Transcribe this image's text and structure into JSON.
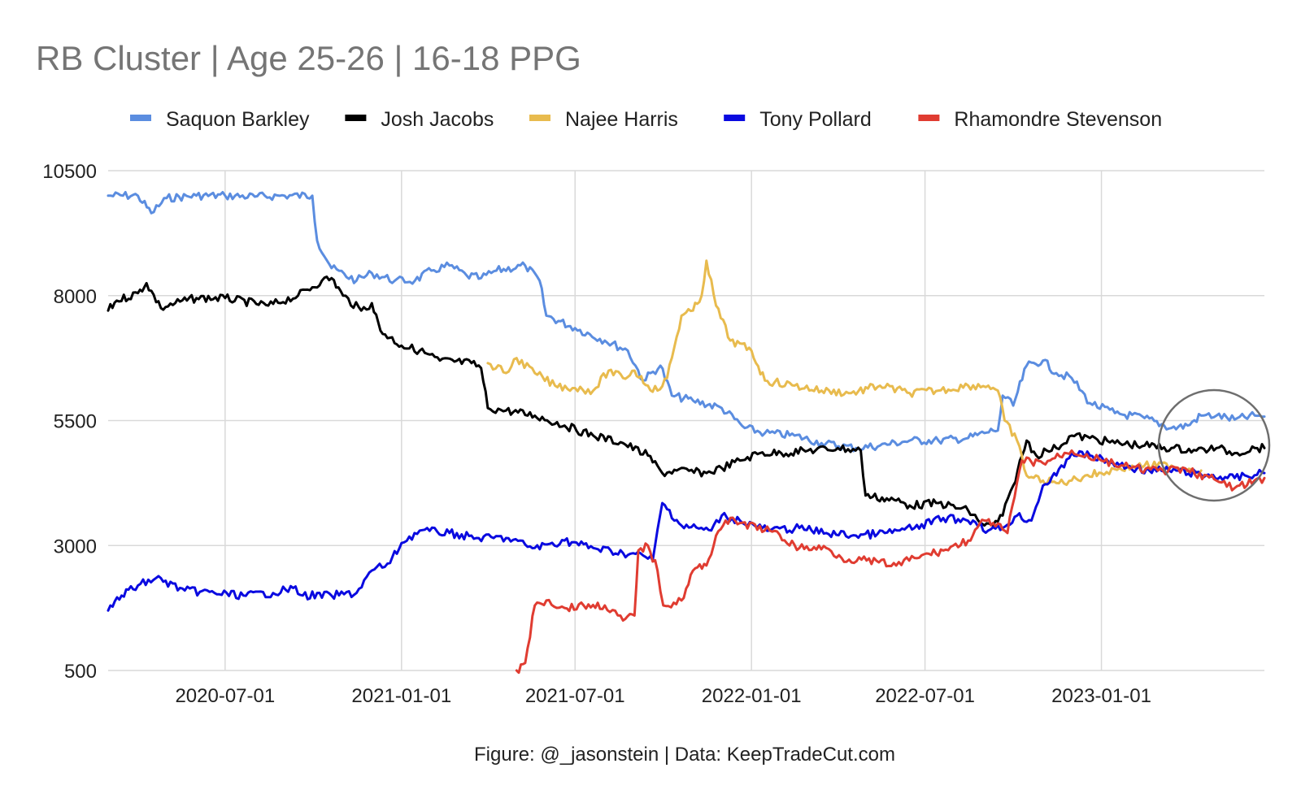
{
  "chart_data": {
    "type": "line",
    "title": "RB Cluster | Age 25-26 | 16-18 PPG",
    "caption": "Figure: @_jasonstein | Data: KeepTradeCut.com",
    "xlabel": "",
    "ylabel": "",
    "xlim": [
      "2020-03-01",
      "2023-06-20"
    ],
    "ylim": [
      500,
      10500
    ],
    "x_ticks": [
      "2020-07-01",
      "2021-01-01",
      "2021-07-01",
      "2022-01-01",
      "2022-07-01",
      "2023-01-01"
    ],
    "y_ticks": [
      "10500",
      "8000",
      "5500",
      "3000",
      "500"
    ],
    "grid": true,
    "legend_position": "top",
    "annotation": "circle highlighting most recent values (May-Jun 2023)",
    "series": [
      {
        "name": "Saquon Barkley",
        "color": "#5b8de0",
        "points": [
          [
            "2020-03-01",
            10000
          ],
          [
            "2020-04-01",
            10000
          ],
          [
            "2020-04-15",
            9650
          ],
          [
            "2020-05-01",
            9950
          ],
          [
            "2020-06-01",
            10000
          ],
          [
            "2020-07-01",
            10000
          ],
          [
            "2020-08-01",
            9980
          ],
          [
            "2020-09-01",
            10000
          ],
          [
            "2020-09-30",
            10000
          ],
          [
            "2020-10-05",
            9100
          ],
          [
            "2020-10-20",
            8550
          ],
          [
            "2020-11-15",
            8300
          ],
          [
            "2020-12-01",
            8450
          ],
          [
            "2020-12-25",
            8300
          ],
          [
            "2021-01-15",
            8300
          ],
          [
            "2021-02-01",
            8500
          ],
          [
            "2021-02-20",
            8600
          ],
          [
            "2021-03-10",
            8400
          ],
          [
            "2021-03-25",
            8350
          ],
          [
            "2021-04-10",
            8500
          ],
          [
            "2021-05-10",
            8600
          ],
          [
            "2021-05-25",
            8300
          ],
          [
            "2021-06-01",
            7600
          ],
          [
            "2021-07-01",
            7350
          ],
          [
            "2021-08-01",
            7100
          ],
          [
            "2021-08-25",
            6900
          ],
          [
            "2021-09-10",
            6300
          ],
          [
            "2021-09-28",
            6600
          ],
          [
            "2021-10-10",
            6000
          ],
          [
            "2021-11-01",
            5900
          ],
          [
            "2021-12-01",
            5750
          ],
          [
            "2021-12-25",
            5350
          ],
          [
            "2022-01-15",
            5250
          ],
          [
            "2022-02-15",
            5200
          ],
          [
            "2022-03-15",
            5050
          ],
          [
            "2022-04-20",
            4950
          ],
          [
            "2022-05-15",
            5000
          ],
          [
            "2022-06-15",
            5100
          ],
          [
            "2022-07-15",
            5100
          ],
          [
            "2022-08-15",
            5150
          ],
          [
            "2022-09-01",
            5250
          ],
          [
            "2022-09-10",
            5300
          ],
          [
            "2022-09-15",
            5300
          ],
          [
            "2022-09-20",
            6000
          ],
          [
            "2022-10-01",
            5800
          ],
          [
            "2022-10-15",
            6600
          ],
          [
            "2022-11-01",
            6700
          ],
          [
            "2022-11-15",
            6450
          ],
          [
            "2022-12-01",
            6350
          ],
          [
            "2022-12-20",
            5850
          ],
          [
            "2023-01-15",
            5650
          ],
          [
            "2023-02-15",
            5550
          ],
          [
            "2023-03-15",
            5350
          ],
          [
            "2023-04-01",
            5400
          ],
          [
            "2023-04-15",
            5600
          ],
          [
            "2023-05-01",
            5600
          ],
          [
            "2023-05-20",
            5520
          ],
          [
            "2023-06-10",
            5600
          ],
          [
            "2023-06-20",
            5580
          ]
        ]
      },
      {
        "name": "Josh Jacobs",
        "color": "#000000",
        "points": [
          [
            "2020-03-01",
            7700
          ],
          [
            "2020-03-10",
            7900
          ],
          [
            "2020-04-01",
            8050
          ],
          [
            "2020-04-10",
            8250
          ],
          [
            "2020-04-25",
            7750
          ],
          [
            "2020-05-10",
            7850
          ],
          [
            "2020-06-01",
            7950
          ],
          [
            "2020-07-01",
            7950
          ],
          [
            "2020-08-15",
            7800
          ],
          [
            "2020-09-15",
            8000
          ],
          [
            "2020-10-10",
            8300
          ],
          [
            "2020-10-20",
            8350
          ],
          [
            "2020-11-01",
            8000
          ],
          [
            "2020-11-20",
            7700
          ],
          [
            "2020-12-01",
            7850
          ],
          [
            "2020-12-10",
            7300
          ],
          [
            "2021-01-01",
            7000
          ],
          [
            "2021-01-20",
            6900
          ],
          [
            "2021-02-10",
            6700
          ],
          [
            "2021-03-15",
            6650
          ],
          [
            "2021-03-25",
            6550
          ],
          [
            "2021-04-01",
            5750
          ],
          [
            "2021-04-20",
            5700
          ],
          [
            "2021-05-20",
            5600
          ],
          [
            "2021-06-20",
            5400
          ],
          [
            "2021-07-20",
            5200
          ],
          [
            "2021-08-20",
            5050
          ],
          [
            "2021-09-15",
            4800
          ],
          [
            "2021-09-30",
            4450
          ],
          [
            "2021-10-15",
            4500
          ],
          [
            "2021-11-15",
            4450
          ],
          [
            "2021-12-01",
            4550
          ],
          [
            "2021-12-20",
            4700
          ],
          [
            "2022-01-10",
            4850
          ],
          [
            "2022-02-01",
            4850
          ],
          [
            "2022-03-01",
            4900
          ],
          [
            "2022-04-01",
            4950
          ],
          [
            "2022-04-25",
            4900
          ],
          [
            "2022-04-30",
            4000
          ],
          [
            "2022-06-01",
            3900
          ],
          [
            "2022-06-15",
            3800
          ],
          [
            "2022-07-15",
            3850
          ],
          [
            "2022-08-15",
            3700
          ],
          [
            "2022-09-01",
            3400
          ],
          [
            "2022-09-10",
            3400
          ],
          [
            "2022-09-20",
            3600
          ],
          [
            "2022-10-01",
            4200
          ],
          [
            "2022-10-15",
            5100
          ],
          [
            "2022-10-25",
            4800
          ],
          [
            "2022-11-05",
            4900
          ],
          [
            "2022-11-15",
            4950
          ],
          [
            "2022-12-01",
            5200
          ],
          [
            "2022-12-20",
            5150
          ],
          [
            "2023-01-15",
            5050
          ],
          [
            "2023-02-15",
            5000
          ],
          [
            "2023-03-15",
            4950
          ],
          [
            "2023-04-10",
            4900
          ],
          [
            "2023-05-01",
            4950
          ],
          [
            "2023-05-20",
            4850
          ],
          [
            "2023-06-10",
            4950
          ],
          [
            "2023-06-20",
            4950
          ]
        ]
      },
      {
        "name": "Najee Harris",
        "color": "#e8bb4e",
        "points": [
          [
            "2021-04-01",
            6650
          ],
          [
            "2021-04-20",
            6450
          ],
          [
            "2021-05-01",
            6750
          ],
          [
            "2021-05-20",
            6450
          ],
          [
            "2021-06-10",
            6200
          ],
          [
            "2021-07-01",
            6150
          ],
          [
            "2021-07-20",
            6100
          ],
          [
            "2021-08-05",
            6500
          ],
          [
            "2021-08-20",
            6350
          ],
          [
            "2021-09-01",
            6500
          ],
          [
            "2021-09-15",
            6200
          ],
          [
            "2021-09-25",
            6100
          ],
          [
            "2021-10-05",
            6350
          ],
          [
            "2021-10-20",
            7600
          ],
          [
            "2021-11-01",
            7700
          ],
          [
            "2021-11-10",
            8000
          ],
          [
            "2021-11-15",
            8700
          ],
          [
            "2021-11-25",
            7800
          ],
          [
            "2021-12-10",
            7100
          ],
          [
            "2022-01-01",
            6900
          ],
          [
            "2022-01-15",
            6300
          ],
          [
            "2022-02-15",
            6200
          ],
          [
            "2022-03-15",
            6100
          ],
          [
            "2022-04-15",
            6050
          ],
          [
            "2022-05-15",
            6200
          ],
          [
            "2022-06-15",
            6050
          ],
          [
            "2022-07-15",
            6100
          ],
          [
            "2022-08-15",
            6200
          ],
          [
            "2022-09-05",
            6200
          ],
          [
            "2022-09-15",
            6100
          ],
          [
            "2022-09-22",
            5500
          ],
          [
            "2022-10-05",
            5100
          ],
          [
            "2022-10-15",
            4400
          ],
          [
            "2022-11-01",
            4300
          ],
          [
            "2022-11-15",
            4250
          ],
          [
            "2022-12-01",
            4300
          ],
          [
            "2022-12-15",
            4400
          ],
          [
            "2023-01-01",
            4450
          ],
          [
            "2023-01-20",
            4550
          ],
          [
            "2023-02-15",
            4600
          ],
          [
            "2023-03-15",
            4600
          ],
          [
            "2023-04-15",
            4500
          ]
        ]
      },
      {
        "name": "Tony Pollard",
        "color": "#0a0ae0",
        "points": [
          [
            "2020-03-01",
            1700
          ],
          [
            "2020-03-15",
            2000
          ],
          [
            "2020-04-01",
            2200
          ],
          [
            "2020-04-20",
            2350
          ],
          [
            "2020-05-20",
            2100
          ],
          [
            "2020-06-20",
            2050
          ],
          [
            "2020-07-20",
            2000
          ],
          [
            "2020-08-20",
            2050
          ],
          [
            "2020-09-10",
            2150
          ],
          [
            "2020-09-20",
            2000
          ],
          [
            "2020-10-20",
            2000
          ],
          [
            "2020-11-15",
            2050
          ],
          [
            "2020-12-01",
            2500
          ],
          [
            "2020-12-20",
            2650
          ],
          [
            "2021-01-01",
            3050
          ],
          [
            "2021-01-20",
            3300
          ],
          [
            "2021-02-20",
            3250
          ],
          [
            "2021-03-20",
            3150
          ],
          [
            "2021-04-20",
            3150
          ],
          [
            "2021-05-20",
            2950
          ],
          [
            "2021-06-20",
            3100
          ],
          [
            "2021-07-20",
            2950
          ],
          [
            "2021-08-20",
            2850
          ],
          [
            "2021-09-10",
            2800
          ],
          [
            "2021-09-20",
            2700
          ],
          [
            "2021-09-30",
            3850
          ],
          [
            "2021-10-20",
            3400
          ],
          [
            "2021-11-20",
            3300
          ],
          [
            "2021-12-01",
            3600
          ],
          [
            "2021-12-20",
            3500
          ],
          [
            "2022-01-20",
            3300
          ],
          [
            "2022-02-20",
            3350
          ],
          [
            "2022-03-20",
            3250
          ],
          [
            "2022-04-20",
            3200
          ],
          [
            "2022-05-20",
            3250
          ],
          [
            "2022-06-20",
            3350
          ],
          [
            "2022-07-20",
            3550
          ],
          [
            "2022-08-20",
            3500
          ],
          [
            "2022-09-05",
            3300
          ],
          [
            "2022-09-20",
            3350
          ],
          [
            "2022-10-05",
            3600
          ],
          [
            "2022-10-20",
            3500
          ],
          [
            "2022-11-01",
            4200
          ],
          [
            "2022-11-15",
            4400
          ],
          [
            "2022-12-01",
            4850
          ],
          [
            "2022-12-20",
            4800
          ],
          [
            "2023-01-20",
            4600
          ],
          [
            "2023-02-20",
            4500
          ],
          [
            "2023-03-20",
            4500
          ],
          [
            "2023-04-20",
            4400
          ],
          [
            "2023-05-20",
            4350
          ],
          [
            "2023-06-20",
            4450
          ]
        ]
      },
      {
        "name": "Rhamondre Stevenson",
        "color": "#e03c31",
        "points": [
          [
            "2021-05-01",
            500
          ],
          [
            "2021-05-10",
            650
          ],
          [
            "2021-05-20",
            1800
          ],
          [
            "2021-06-01",
            1900
          ],
          [
            "2021-06-20",
            1750
          ],
          [
            "2021-07-10",
            1800
          ],
          [
            "2021-08-01",
            1800
          ],
          [
            "2021-08-20",
            1500
          ],
          [
            "2021-09-01",
            1600
          ],
          [
            "2021-09-05",
            2900
          ],
          [
            "2021-09-15",
            3000
          ],
          [
            "2021-09-25",
            2500
          ],
          [
            "2021-10-01",
            1800
          ],
          [
            "2021-10-20",
            1900
          ],
          [
            "2021-11-01",
            2500
          ],
          [
            "2021-11-15",
            2600
          ],
          [
            "2021-11-25",
            3200
          ],
          [
            "2021-12-05",
            3500
          ],
          [
            "2021-12-20",
            3450
          ],
          [
            "2022-01-20",
            3300
          ],
          [
            "2022-02-20",
            2950
          ],
          [
            "2022-03-20",
            2950
          ],
          [
            "2022-04-05",
            2750
          ],
          [
            "2022-05-01",
            2700
          ],
          [
            "2022-06-01",
            2600
          ],
          [
            "2022-06-20",
            2750
          ],
          [
            "2022-07-20",
            2900
          ],
          [
            "2022-08-15",
            3100
          ],
          [
            "2022-09-01",
            3500
          ],
          [
            "2022-09-10",
            3450
          ],
          [
            "2022-09-25",
            3250
          ],
          [
            "2022-10-10",
            4700
          ],
          [
            "2022-11-01",
            4650
          ],
          [
            "2022-12-01",
            4900
          ],
          [
            "2023-01-01",
            4700
          ],
          [
            "2023-02-01",
            4550
          ],
          [
            "2023-03-01",
            4500
          ],
          [
            "2023-04-01",
            4500
          ],
          [
            "2023-05-01",
            4300
          ],
          [
            "2023-05-20",
            4150
          ],
          [
            "2023-06-20",
            4350
          ]
        ]
      }
    ]
  }
}
